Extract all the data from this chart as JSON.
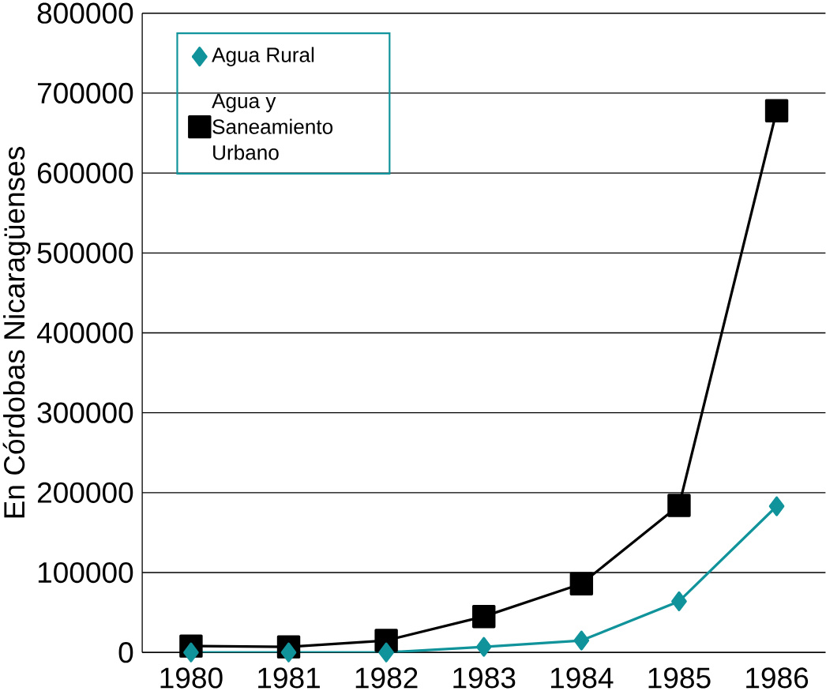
{
  "chart_data": {
    "type": "line",
    "ylabel": "En Córdobas Nicaragüenses",
    "categories": [
      "1980",
      "1981",
      "1982",
      "1983",
      "1984",
      "1985",
      "1986"
    ],
    "series": [
      {
        "name": "Agua Rural",
        "color": "#10939a",
        "marker": "diamond",
        "values": [
          0,
          0,
          0,
          7000,
          15000,
          64000,
          183000
        ]
      },
      {
        "name": "Agua y Saneamiento Urbano",
        "color": "#000000",
        "marker": "square",
        "values": [
          8000,
          7000,
          15000,
          45000,
          86000,
          184000,
          678000
        ]
      }
    ],
    "ylim": [
      0,
      800000
    ],
    "yticks": [
      0,
      100000,
      200000,
      300000,
      400000,
      500000,
      600000,
      700000,
      800000
    ],
    "grid": "y",
    "legend": "top left",
    "line_style": "solid"
  }
}
